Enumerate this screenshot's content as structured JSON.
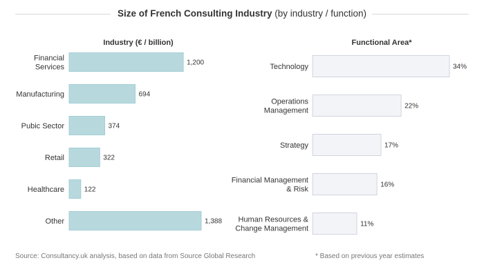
{
  "title": {
    "main": "Size of French Consulting Industry",
    "sub": " (by industry / function)"
  },
  "colors": {
    "industry_bar": "#b7d9de",
    "industry_stroke": "#a3cdd4",
    "function_bar": "#f2f4f8",
    "function_stroke": "#d0d4dc"
  },
  "chart_data": [
    {
      "type": "bar",
      "orientation": "horizontal",
      "title": "Industry (€ / billion)",
      "categories": [
        "Financial Services",
        "Manufacturing",
        "Pubic Sector",
        "Retail",
        "Healthcare",
        "Other"
      ],
      "category_lines": [
        [
          "Financial",
          "Services"
        ],
        [
          "Manufacturing"
        ],
        [
          "Pubic Sector"
        ],
        [
          "Retail"
        ],
        [
          "Healthcare"
        ],
        [
          "Other"
        ]
      ],
      "values": [
        1200,
        694,
        374,
        322,
        122,
        1388
      ],
      "value_labels": [
        "1,200",
        "694",
        "374",
        "322",
        "122",
        "1,388"
      ],
      "xlim": [
        0,
        1388
      ]
    },
    {
      "type": "bar",
      "orientation": "horizontal",
      "title": "Functional Area*",
      "categories": [
        "Technology",
        "Operations Management",
        "Strategy",
        "Financial Management & Risk",
        "Human Resources & Change Management"
      ],
      "category_lines": [
        [
          "Technology"
        ],
        [
          "Operations",
          "Management"
        ],
        [
          "Strategy"
        ],
        [
          "Financial Management",
          "& Risk"
        ],
        [
          "Human Resources &",
          "Change Management"
        ]
      ],
      "values": [
        34,
        22,
        17,
        16,
        11
      ],
      "value_labels": [
        "34%",
        "22%",
        "17%",
        "16%",
        "11%"
      ],
      "xlim": [
        0,
        34
      ]
    }
  ],
  "footer": {
    "source": "Source: Consultancy.uk analysis, based on data from Source Global Research",
    "note": "* Based on previous year estimates"
  }
}
